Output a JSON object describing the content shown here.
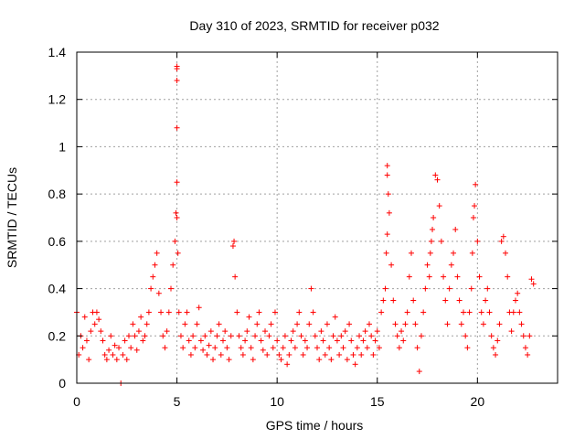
{
  "chart_data": {
    "type": "scatter",
    "title": "Day 310 of 2023, SRMTID for receiver p032",
    "xlabel": "GPS time / hours",
    "ylabel": "SRMTID / TECUs",
    "xlim": [
      0,
      24
    ],
    "ylim": [
      0,
      1.4
    ],
    "xticks": [
      0,
      5,
      10,
      15,
      20
    ],
    "xtick_labels": [
      "0",
      "5",
      "10",
      "15",
      "20"
    ],
    "yticks": [
      0,
      0.2,
      0.4,
      0.6,
      0.8,
      1,
      1.2,
      1.4
    ],
    "ytick_labels": [
      "0",
      "0.2",
      "0.4",
      "0.6",
      "0.8",
      "1",
      "1.2",
      "1.4"
    ],
    "grid": true,
    "marker": "+",
    "color": "#ff0000",
    "series": [
      {
        "name": "SRMTID",
        "x": [
          0.0,
          0.1,
          0.2,
          0.3,
          0.4,
          0.5,
          0.6,
          0.7,
          0.8,
          0.9,
          1.0,
          1.1,
          1.2,
          1.3,
          1.4,
          1.5,
          1.6,
          1.7,
          1.8,
          1.9,
          2.0,
          2.1,
          2.2,
          2.3,
          2.4,
          2.5,
          2.6,
          2.7,
          2.8,
          2.9,
          3.0,
          3.1,
          3.2,
          3.3,
          3.4,
          3.5,
          3.6,
          3.7,
          3.8,
          3.9,
          4.0,
          4.1,
          4.2,
          4.3,
          4.4,
          4.5,
          4.6,
          4.7,
          4.8,
          4.9,
          4.95,
          5.0,
          5.0,
          5.0,
          5.0,
          5.0,
          5.0,
          5.05,
          5.1,
          5.2,
          5.3,
          5.4,
          5.5,
          5.6,
          5.7,
          5.8,
          5.9,
          6.0,
          6.1,
          6.2,
          6.3,
          6.4,
          6.5,
          6.6,
          6.7,
          6.8,
          6.9,
          7.0,
          7.1,
          7.2,
          7.3,
          7.4,
          7.5,
          7.6,
          7.7,
          7.8,
          7.85,
          7.9,
          8.0,
          8.1,
          8.2,
          8.3,
          8.4,
          8.5,
          8.6,
          8.7,
          8.8,
          8.9,
          9.0,
          9.1,
          9.2,
          9.3,
          9.4,
          9.5,
          9.6,
          9.7,
          9.8,
          9.9,
          10.0,
          10.1,
          10.2,
          10.3,
          10.4,
          10.5,
          10.6,
          10.7,
          10.8,
          10.9,
          11.0,
          11.1,
          11.2,
          11.3,
          11.4,
          11.5,
          11.6,
          11.7,
          11.8,
          11.9,
          12.0,
          12.1,
          12.2,
          12.3,
          12.4,
          12.5,
          12.6,
          12.7,
          12.8,
          12.9,
          13.0,
          13.1,
          13.2,
          13.3,
          13.4,
          13.5,
          13.6,
          13.7,
          13.8,
          13.9,
          14.0,
          14.1,
          14.2,
          14.3,
          14.4,
          14.5,
          14.6,
          14.7,
          14.8,
          14.9,
          15.0,
          15.1,
          15.2,
          15.3,
          15.4,
          15.45,
          15.5,
          15.5,
          15.5,
          15.55,
          15.6,
          15.7,
          15.8,
          15.9,
          16.0,
          16.1,
          16.2,
          16.3,
          16.4,
          16.5,
          16.6,
          16.7,
          16.8,
          16.9,
          17.0,
          17.1,
          17.2,
          17.3,
          17.4,
          17.5,
          17.6,
          17.65,
          17.7,
          17.75,
          17.8,
          17.9,
          18.0,
          18.1,
          18.2,
          18.3,
          18.4,
          18.5,
          18.6,
          18.7,
          18.8,
          18.9,
          19.0,
          19.1,
          19.2,
          19.3,
          19.4,
          19.5,
          19.6,
          19.7,
          19.75,
          19.8,
          19.85,
          19.9,
          20.0,
          20.1,
          20.2,
          20.3,
          20.4,
          20.5,
          20.6,
          20.7,
          20.8,
          20.9,
          21.0,
          21.1,
          21.2,
          21.3,
          21.4,
          21.5,
          21.6,
          21.7,
          21.8,
          21.9,
          22.0,
          22.1,
          22.2,
          22.3,
          22.4,
          22.5,
          22.6,
          22.7,
          22.8
        ],
        "y": [
          0.3,
          0.12,
          0.2,
          0.15,
          0.28,
          0.18,
          0.1,
          0.22,
          0.3,
          0.25,
          0.3,
          0.27,
          0.22,
          0.18,
          0.12,
          0.1,
          0.14,
          0.2,
          0.12,
          0.16,
          0.1,
          0.15,
          0.0,
          0.12,
          0.18,
          0.1,
          0.2,
          0.15,
          0.25,
          0.2,
          0.14,
          0.22,
          0.28,
          0.18,
          0.2,
          0.25,
          0.3,
          0.4,
          0.45,
          0.5,
          0.55,
          0.38,
          0.3,
          0.2,
          0.15,
          0.22,
          0.3,
          0.4,
          0.5,
          0.6,
          0.72,
          0.85,
          1.08,
          1.28,
          1.33,
          1.34,
          0.7,
          0.55,
          0.3,
          0.2,
          0.15,
          0.25,
          0.3,
          0.18,
          0.12,
          0.2,
          0.15,
          0.25,
          0.32,
          0.18,
          0.14,
          0.2,
          0.12,
          0.16,
          0.22,
          0.1,
          0.15,
          0.2,
          0.25,
          0.12,
          0.18,
          0.22,
          0.15,
          0.1,
          0.2,
          0.58,
          0.6,
          0.45,
          0.3,
          0.2,
          0.15,
          0.12,
          0.18,
          0.22,
          0.28,
          0.15,
          0.1,
          0.2,
          0.25,
          0.3,
          0.18,
          0.14,
          0.22,
          0.12,
          0.2,
          0.25,
          0.15,
          0.3,
          0.18,
          0.12,
          0.1,
          0.15,
          0.2,
          0.08,
          0.12,
          0.18,
          0.22,
          0.15,
          0.25,
          0.3,
          0.2,
          0.12,
          0.18,
          0.15,
          0.25,
          0.4,
          0.3,
          0.2,
          0.15,
          0.1,
          0.22,
          0.18,
          0.12,
          0.25,
          0.15,
          0.1,
          0.2,
          0.28,
          0.18,
          0.12,
          0.2,
          0.15,
          0.22,
          0.1,
          0.25,
          0.18,
          0.12,
          0.08,
          0.15,
          0.2,
          0.12,
          0.18,
          0.22,
          0.15,
          0.25,
          0.2,
          0.12,
          0.18,
          0.22,
          0.15,
          0.3,
          0.35,
          0.4,
          0.55,
          0.63,
          0.88,
          0.92,
          0.8,
          0.72,
          0.5,
          0.35,
          0.25,
          0.2,
          0.15,
          0.22,
          0.18,
          0.25,
          0.3,
          0.45,
          0.55,
          0.35,
          0.25,
          0.15,
          0.05,
          0.2,
          0.3,
          0.4,
          0.5,
          0.45,
          0.55,
          0.6,
          0.65,
          0.7,
          0.88,
          0.86,
          0.75,
          0.6,
          0.45,
          0.35,
          0.25,
          0.4,
          0.5,
          0.55,
          0.65,
          0.45,
          0.35,
          0.25,
          0.3,
          0.2,
          0.15,
          0.3,
          0.4,
          0.55,
          0.7,
          0.75,
          0.84,
          0.6,
          0.45,
          0.3,
          0.25,
          0.35,
          0.4,
          0.3,
          0.2,
          0.15,
          0.12,
          0.18,
          0.25,
          0.6,
          0.62,
          0.55,
          0.45,
          0.3,
          0.22,
          0.3,
          0.35,
          0.38,
          0.3,
          0.25,
          0.2,
          0.15,
          0.12,
          0.2,
          0.44,
          0.42
        ]
      }
    ]
  }
}
